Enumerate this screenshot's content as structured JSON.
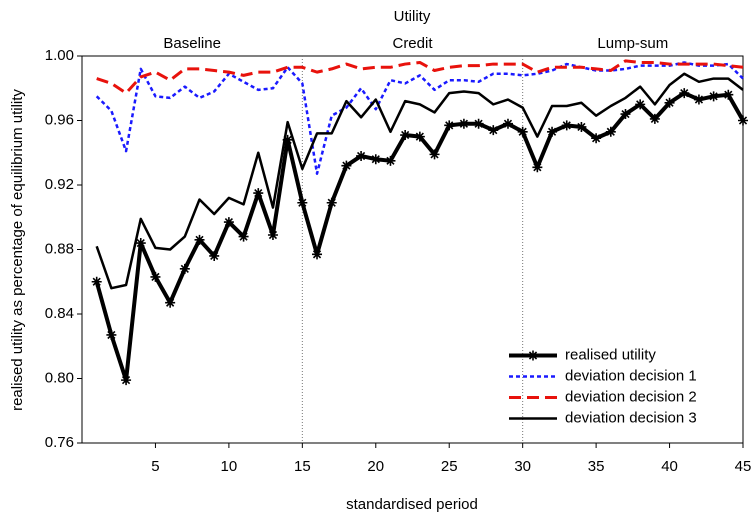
{
  "chart_data": {
    "type": "line",
    "title": "Utility",
    "sections": [
      "Baseline",
      "Credit",
      "Lump-sum"
    ],
    "dividers": [
      15,
      30
    ],
    "x_label": "standardised period",
    "y_label": "realised utility as percentage of equilibrium utility",
    "x": [
      1,
      2,
      3,
      4,
      5,
      6,
      7,
      8,
      9,
      10,
      11,
      12,
      13,
      14,
      15,
      16,
      17,
      18,
      19,
      20,
      21,
      22,
      23,
      24,
      25,
      26,
      27,
      28,
      29,
      30,
      31,
      32,
      33,
      34,
      35,
      36,
      37,
      38,
      39,
      40,
      41,
      42,
      43,
      44,
      45
    ],
    "xlim": [
      0,
      45
    ],
    "xticks": [
      5,
      10,
      15,
      20,
      25,
      30,
      35,
      40,
      45
    ],
    "ylim": [
      0.76,
      1.0
    ],
    "yticks": [
      0.76,
      {
        "value": 0.8,
        "label": "0.80"
      },
      0.84,
      0.88,
      0.92,
      0.96,
      {
        "value": 1.0,
        "label": "1.00"
      }
    ],
    "legend": "lower right",
    "series": [
      {
        "name": "realised utility",
        "color": "#000000",
        "width": 4,
        "dash": "none",
        "marker": "star",
        "values": [
          0.86,
          0.827,
          0.799,
          0.884,
          0.863,
          0.847,
          0.868,
          0.886,
          0.876,
          0.897,
          0.888,
          0.915,
          0.889,
          0.948,
          0.909,
          0.877,
          0.909,
          0.932,
          0.938,
          0.936,
          0.935,
          0.951,
          0.95,
          0.939,
          0.957,
          0.958,
          0.958,
          0.954,
          0.958,
          0.953,
          0.931,
          0.953,
          0.957,
          0.956,
          0.949,
          0.953,
          0.964,
          0.97,
          0.961,
          0.971,
          0.977,
          0.973,
          0.975,
          0.976,
          0.96
        ]
      },
      {
        "name": "deviation decision 1",
        "color": "#1a1aff",
        "width": 2.5,
        "dash": "4 3",
        "marker": "none",
        "values": [
          0.975,
          0.966,
          0.941,
          0.992,
          0.975,
          0.974,
          0.981,
          0.974,
          0.978,
          0.989,
          0.984,
          0.979,
          0.98,
          0.993,
          0.983,
          0.927,
          0.963,
          0.968,
          0.98,
          0.967,
          0.985,
          0.983,
          0.988,
          0.979,
          0.985,
          0.985,
          0.984,
          0.989,
          0.989,
          0.988,
          0.989,
          0.991,
          0.995,
          0.993,
          0.991,
          0.991,
          0.992,
          0.994,
          0.994,
          0.994,
          0.996,
          0.994,
          0.994,
          0.995,
          0.986
        ]
      },
      {
        "name": "deviation decision 2",
        "color": "#e8120c",
        "width": 3,
        "dash": "12 6",
        "marker": "none",
        "values": [
          0.986,
          0.983,
          0.977,
          0.987,
          0.99,
          0.985,
          0.992,
          0.992,
          0.991,
          0.99,
          0.988,
          0.99,
          0.99,
          0.993,
          0.993,
          0.99,
          0.992,
          0.995,
          0.992,
          0.993,
          0.993,
          0.995,
          0.996,
          0.991,
          0.993,
          0.994,
          0.994,
          0.995,
          0.995,
          0.995,
          0.99,
          0.993,
          0.993,
          0.993,
          0.992,
          0.991,
          0.997,
          0.996,
          0.996,
          0.995,
          0.995,
          0.995,
          0.995,
          0.994,
          0.993
        ]
      },
      {
        "name": "deviation decision 3",
        "color": "#000000",
        "width": 2.5,
        "dash": "none",
        "marker": "none",
        "values": [
          0.882,
          0.856,
          0.858,
          0.899,
          0.881,
          0.88,
          0.888,
          0.911,
          0.902,
          0.912,
          0.908,
          0.94,
          0.906,
          0.959,
          0.93,
          0.952,
          0.952,
          0.972,
          0.962,
          0.973,
          0.953,
          0.972,
          0.97,
          0.965,
          0.977,
          0.978,
          0.977,
          0.97,
          0.973,
          0.968,
          0.95,
          0.969,
          0.969,
          0.971,
          0.963,
          0.969,
          0.974,
          0.981,
          0.97,
          0.982,
          0.989,
          0.984,
          0.986,
          0.986,
          0.979
        ]
      }
    ]
  }
}
